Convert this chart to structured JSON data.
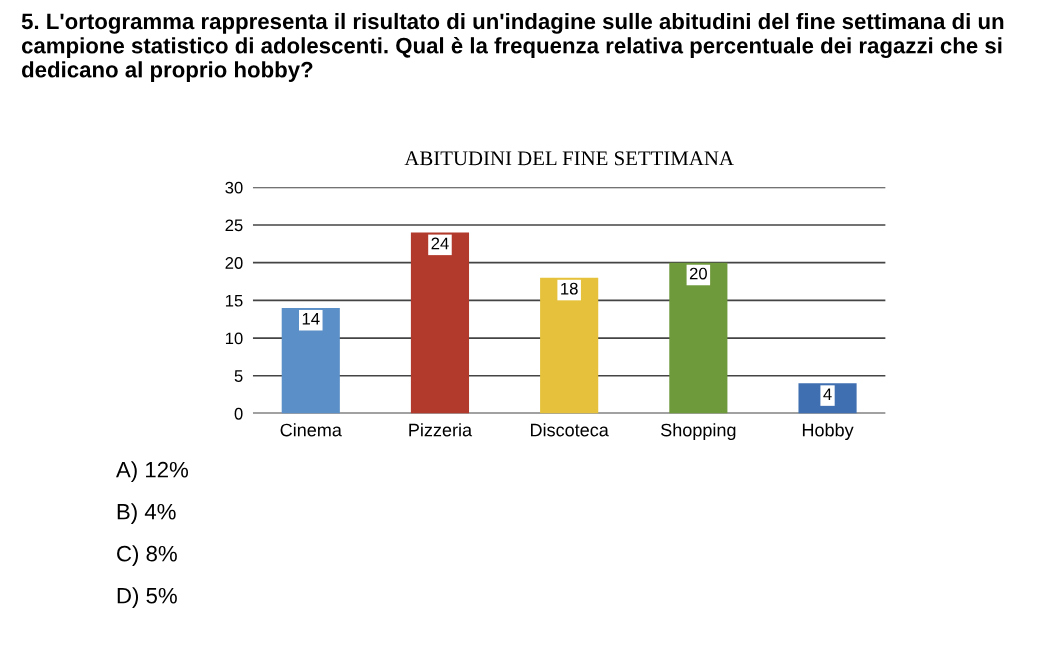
{
  "chart_data": {
    "type": "bar",
    "title": "ABITUDINI DEL FINE SETTIMANA",
    "categories": [
      "Cinema",
      "Pizzeria",
      "Discoteca",
      "Shopping",
      "Hobby"
    ],
    "values": [
      14,
      24,
      18,
      20,
      4
    ],
    "colors": [
      "#5b8fc7",
      "#b23a2c",
      "#e6c23c",
      "#6f9a3c",
      "#3f6fb0"
    ],
    "ylim": [
      0,
      30
    ],
    "yticks": [
      0,
      5,
      10,
      15,
      20,
      25,
      30
    ],
    "grid": "y",
    "data_labels": true,
    "annotations": [
      "5. L'ortogramma rappresenta il risultato di un'indagine sulle abitudini del fine settimana di un campione statistico di adolescenti. Qual è la frequenza relativa percentuale dei ragazzi che si dedicano al proprio hobby?",
      "A) 12%",
      "B) 4%",
      "C) 8%",
      "D) 5%"
    ]
  }
}
